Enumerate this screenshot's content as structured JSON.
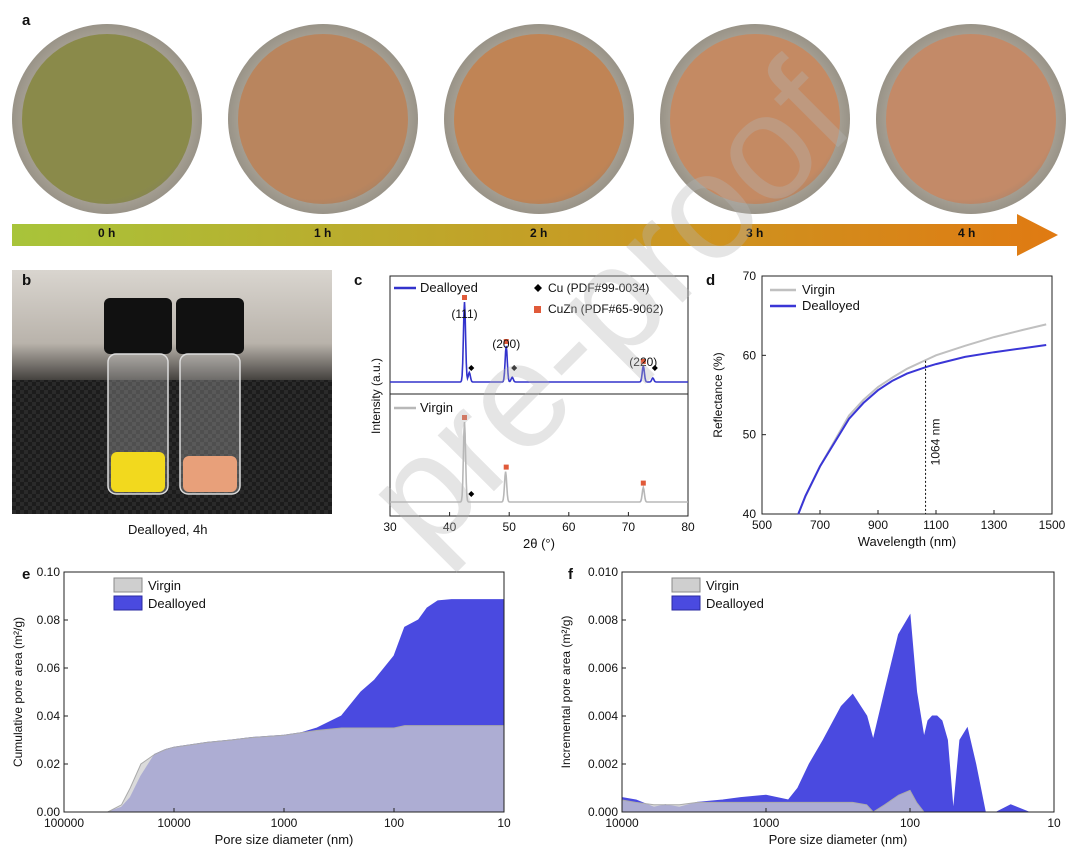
{
  "panels": {
    "a": "a",
    "b": "b",
    "c": "c",
    "d": "d",
    "e": "e",
    "f": "f"
  },
  "panel_a": {
    "times": [
      "0 h",
      "1 h",
      "2 h",
      "3 h",
      "4 h"
    ],
    "dish_colors": [
      "#8a8a4a",
      "#b9855e",
      "#c08455",
      "#c48a63",
      "#c38a68"
    ],
    "arrow_colors": [
      "#a8c43a",
      "#e07a12"
    ]
  },
  "panel_b": {
    "caption": "Dealloyed, 4h",
    "powder_colors": [
      "#f2d91e",
      "#e8a07a"
    ]
  },
  "watermark": "pre-proof",
  "chart_data": [
    {
      "id": "c",
      "type": "line",
      "xlabel": "2θ (°)",
      "ylabel": "Intensity (a.u.)",
      "xlim": [
        30,
        80
      ],
      "xticks": [
        30,
        40,
        50,
        60,
        70,
        80
      ],
      "series": [
        {
          "name": "Dealloyed",
          "color": "#3333cc",
          "peaks": [
            {
              "x": 42.5,
              "h": 1.0
            },
            {
              "x": 43.3,
              "h": 0.12
            },
            {
              "x": 49.5,
              "h": 0.45
            },
            {
              "x": 50.5,
              "h": 0.06
            },
            {
              "x": 72.5,
              "h": 0.2
            },
            {
              "x": 74.1,
              "h": 0.05
            }
          ]
        },
        {
          "name": "Virgin",
          "color": "#b8b8b8",
          "peaks": [
            {
              "x": 42.5,
              "h": 1.0
            },
            {
              "x": 49.4,
              "h": 0.38
            },
            {
              "x": 72.5,
              "h": 0.18
            }
          ]
        }
      ],
      "legend": [
        {
          "label": "Dealloyed",
          "marker": "line",
          "color": "#3333cc"
        },
        {
          "label": "Cu (PDF#99-0034)",
          "marker": "diamond",
          "color": "#000000"
        },
        {
          "label": "CuZn (PDF#65-9062)",
          "marker": "square",
          "color": "#e05a3a"
        },
        {
          "label": "Virgin",
          "marker": "line",
          "color": "#b8b8b8"
        }
      ],
      "annotations": [
        {
          "text": "(111)",
          "x": 42.5
        },
        {
          "text": "(200)",
          "x": 49.5
        },
        {
          "text": "(220)",
          "x": 72.5
        }
      ],
      "cu_markers_x": [
        43.3,
        50.5,
        74.1
      ],
      "cuzn_markers_x": [
        42.5,
        49.5,
        72.5
      ]
    },
    {
      "id": "d",
      "type": "line",
      "xlabel": "Wavelength (nm)",
      "ylabel": "Reflectance (%)",
      "xlim": [
        500,
        1500
      ],
      "ylim": [
        40,
        70
      ],
      "xticks": [
        500,
        700,
        900,
        1100,
        1300,
        1500
      ],
      "yticks": [
        40,
        50,
        60,
        70
      ],
      "series": [
        {
          "name": "Virgin",
          "color": "#c0c0c0",
          "x": [
            625,
            650,
            700,
            750,
            800,
            850,
            900,
            950,
            1000,
            1064,
            1100,
            1200,
            1300,
            1400,
            1480
          ],
          "y": [
            40.0,
            42.2,
            46.0,
            49.2,
            52.4,
            54.4,
            56.0,
            57.2,
            58.3,
            59.4,
            60.0,
            61.2,
            62.3,
            63.2,
            63.9
          ]
        },
        {
          "name": "Dealloyed",
          "color": "#3a36d6",
          "x": [
            625,
            650,
            700,
            750,
            800,
            850,
            900,
            950,
            1000,
            1064,
            1100,
            1200,
            1300,
            1400,
            1480
          ],
          "y": [
            40.0,
            42.3,
            46.0,
            49.0,
            52.0,
            54.0,
            55.6,
            56.8,
            57.7,
            58.5,
            58.9,
            59.8,
            60.4,
            60.9,
            61.3
          ]
        }
      ],
      "legend": [
        "Virgin",
        "Dealloyed"
      ],
      "annotation": {
        "text": "1064 nm",
        "x": 1064
      }
    },
    {
      "id": "e",
      "type": "area",
      "xlabel": "Pore size diameter (nm)",
      "ylabel": "Cumulative pore area (m²/g)",
      "xscale": "log-reversed",
      "xlim": [
        100000,
        10
      ],
      "ylim": [
        0,
        0.1
      ],
      "xticks": [
        100000,
        10000,
        1000,
        100,
        10
      ],
      "yticks": [
        0.0,
        0.02,
        0.04,
        0.06,
        0.08,
        0.1
      ],
      "series": [
        {
          "name": "Dealloyed",
          "color": "#4a4ae0",
          "x": [
            40000,
            30000,
            25000,
            20000,
            15000,
            12000,
            10000,
            7000,
            5000,
            3000,
            2000,
            1000,
            700,
            500,
            300,
            200,
            150,
            100,
            80,
            60,
            50,
            40,
            30,
            20,
            15,
            10
          ],
          "y": [
            0,
            0.002,
            0.006,
            0.015,
            0.024,
            0.026,
            0.027,
            0.028,
            0.029,
            0.03,
            0.031,
            0.032,
            0.033,
            0.035,
            0.04,
            0.05,
            0.055,
            0.065,
            0.077,
            0.08,
            0.085,
            0.088,
            0.0885,
            0.0885,
            0.0885,
            0.0885
          ]
        },
        {
          "name": "Virgin",
          "color": "#cfcfcf",
          "x": [
            40000,
            30000,
            25000,
            20000,
            15000,
            12000,
            10000,
            7000,
            5000,
            3000,
            2000,
            1000,
            700,
            500,
            300,
            200,
            150,
            100,
            80,
            60,
            50,
            40,
            30,
            20,
            15,
            10
          ],
          "y": [
            0,
            0.003,
            0.01,
            0.02,
            0.024,
            0.026,
            0.027,
            0.028,
            0.029,
            0.03,
            0.031,
            0.032,
            0.033,
            0.034,
            0.035,
            0.035,
            0.035,
            0.035,
            0.036,
            0.036,
            0.036,
            0.036,
            0.036,
            0.036,
            0.036,
            0.036
          ]
        }
      ],
      "legend": [
        "Virgin",
        "Dealloyed"
      ]
    },
    {
      "id": "f",
      "type": "area",
      "xlabel": "Pore size diameter (nm)",
      "ylabel": "Incremental pore area (m²/g)",
      "xscale": "log-reversed",
      "xlim": [
        10000,
        10
      ],
      "ylim": [
        0,
        0.01
      ],
      "xticks": [
        10000,
        1000,
        100,
        10
      ],
      "yticks": [
        0.0,
        0.002,
        0.004,
        0.006,
        0.008,
        0.01
      ],
      "series": [
        {
          "name": "Dealloyed",
          "color": "#4a4ae0",
          "x": [
            10000,
            8000,
            6000,
            5000,
            4000,
            3000,
            2000,
            1500,
            1000,
            700,
            600,
            500,
            400,
            300,
            250,
            200,
            180,
            150,
            120,
            100,
            90,
            80,
            75,
            70,
            65,
            60,
            55,
            50,
            45,
            40,
            35,
            30,
            25,
            20,
            15
          ],
          "y": [
            0.0006,
            0.0005,
            0.0002,
            0.0003,
            0.0002,
            0.0004,
            0.0005,
            0.0006,
            0.0007,
            0.0005,
            0.001,
            0.002,
            0.003,
            0.0044,
            0.0049,
            0.004,
            0.003,
            0.005,
            0.0074,
            0.0082,
            0.005,
            0.0031,
            0.0038,
            0.004,
            0.004,
            0.0038,
            0.003,
            0.0,
            0.003,
            0.0035,
            0.002,
            0.0,
            0.0,
            0.0003,
            0.0
          ]
        },
        {
          "name": "Virgin",
          "color": "#cfcfcf",
          "x": [
            10000,
            8000,
            6000,
            5000,
            4000,
            3000,
            2000,
            1500,
            1000,
            700,
            600,
            500,
            400,
            300,
            250,
            200,
            180,
            150,
            120,
            100,
            90,
            80,
            75,
            70,
            65,
            60,
            55,
            50,
            45,
            40,
            35,
            30,
            25,
            20,
            15
          ],
          "y": [
            0.0005,
            0.0004,
            0.0003,
            0.0003,
            0.0003,
            0.0004,
            0.0004,
            0.0004,
            0.0004,
            0.0004,
            0.0004,
            0.0004,
            0.0004,
            0.0004,
            0.0004,
            0.0003,
            0.0,
            0.0003,
            0.0007,
            0.0009,
            0.0004,
            0.0,
            0.0,
            0.0,
            0.0,
            0.0,
            0.0,
            0.0,
            0.0,
            0.0,
            0.0,
            0.0,
            0.0,
            0.0,
            0.0
          ]
        }
      ],
      "legend": [
        "Virgin",
        "Dealloyed"
      ]
    }
  ]
}
